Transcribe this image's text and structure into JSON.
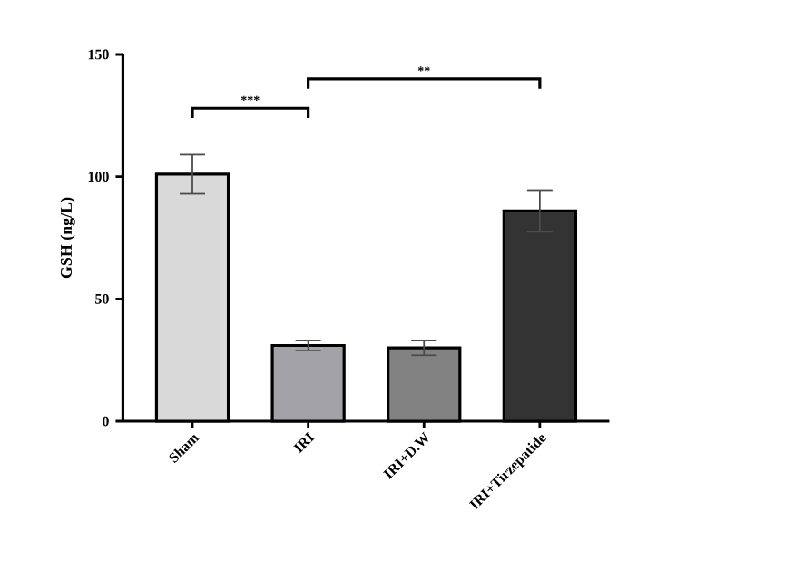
{
  "chart_data": {
    "type": "bar",
    "ylabel": "GSH (ng/L)",
    "categories": [
      "Sham",
      "IRI",
      "IRI+D.W",
      "IRI+Tirzepatide"
    ],
    "values": [
      101,
      31,
      30,
      86
    ],
    "errors": [
      8,
      2,
      3,
      8.5
    ],
    "colors": [
      "#d9d9d9",
      "#a2a2a8",
      "#828282",
      "#333333"
    ],
    "ylim": [
      0,
      150
    ],
    "yticks": [
      0,
      50,
      100,
      150
    ],
    "grid": false,
    "annotations": [
      "***",
      "**"
    ]
  }
}
